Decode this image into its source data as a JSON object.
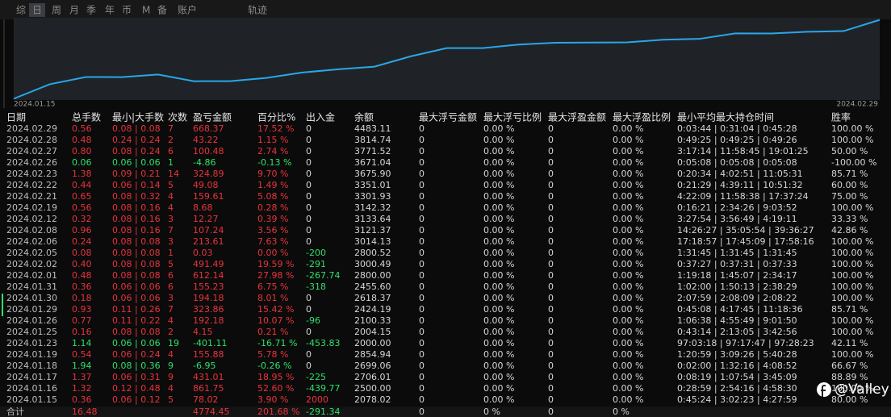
{
  "tabs": [
    "综",
    "日",
    "周",
    "月",
    "季",
    "年",
    "币",
    "M",
    "备",
    "账户",
    "轨迹"
  ],
  "active_tab": 1,
  "chart_data": {
    "type": "line",
    "categories": [
      "2024.01.15",
      null,
      null,
      null,
      null,
      null,
      null,
      null,
      null,
      null,
      null,
      null,
      null,
      null,
      null,
      null,
      null,
      null,
      null,
      null,
      null,
      null,
      null,
      null,
      "2024.02.29"
    ],
    "values": [
      78,
      940,
      1371,
      1364,
      1520,
      1119,
      1123,
      1315,
      1639,
      1833,
      1988,
      2600,
      3092,
      3092,
      3305,
      3413,
      3425,
      3434,
      3593,
      3642,
      3967,
      3962,
      4063,
      4106,
      4774
    ],
    "color": "#2aa6e8",
    "ylim": [
      0,
      4900
    ]
  },
  "table": {
    "header": [
      "日期",
      "总手数",
      "最小|大手数",
      "次数",
      "盈亏金额",
      "百分比%",
      "出入金",
      "余额",
      "最大浮亏金额",
      "最大浮亏比例",
      "最大浮盈金额",
      "最大浮盈比例",
      "最小平均最大持仓时间",
      "胜率"
    ],
    "rows": [
      [
        "2024.02.29",
        "0.56",
        "0.08 | 0.08",
        "7",
        "668.37",
        "17.52 %",
        "0",
        "4483.11",
        "0",
        "0.00 %",
        "0",
        "0.00 %",
        "0:03:44 | 0:31:04 | 0:45:28",
        "100.00 %"
      ],
      [
        "2024.02.28",
        "0.48",
        "0.24 | 0.24",
        "2",
        "43.22",
        "1.15 %",
        "0",
        "3814.74",
        "0",
        "0.00 %",
        "0",
        "0.00 %",
        "0:49:25 | 0:49:25 | 0:49:26",
        "100.00 %"
      ],
      [
        "2024.02.27",
        "0.80",
        "0.08 | 0.24",
        "6",
        "100.48",
        "2.74 %",
        "0",
        "3771.52",
        "0",
        "0.00 %",
        "0",
        "0.00 %",
        "3:17:14 | 11:58:45 | 19:01:25",
        "50.00 %"
      ],
      [
        "2024.02.26",
        "0.06",
        "0.06 | 0.06",
        "1",
        "-4.86",
        "-0.13 %",
        "0",
        "3671.04",
        "0",
        "0.00 %",
        "0",
        "0.00 %",
        "0:05:08 | 0:05:08 | 0:05:08",
        "-100.00 %"
      ],
      [
        "2024.02.23",
        "1.38",
        "0.09 | 0.21",
        "14",
        "324.89",
        "9.70 %",
        "0",
        "3675.90",
        "0",
        "0.00 %",
        "0",
        "0.00 %",
        "0:20:34 | 4:02:51 | 11:05:31",
        "85.71 %"
      ],
      [
        "2024.02.22",
        "0.44",
        "0.06 | 0.14",
        "5",
        "49.08",
        "1.49 %",
        "0",
        "3351.01",
        "0",
        "0.00 %",
        "0",
        "0.00 %",
        "0:21:29 | 4:39:11 | 10:51:32",
        "60.00 %"
      ],
      [
        "2024.02.21",
        "0.65",
        "0.08 | 0.32",
        "4",
        "159.61",
        "5.08 %",
        "0",
        "3301.93",
        "0",
        "0.00 %",
        "0",
        "0.00 %",
        "4:22:09 | 11:58:38 | 17:37:24",
        "75.00 %"
      ],
      [
        "2024.02.19",
        "0.56",
        "0.08 | 0.16",
        "4",
        "8.68",
        "0.28 %",
        "0",
        "3142.32",
        "0",
        "0.00 %",
        "0",
        "0.00 %",
        "0:16:21 | 2:34:26 | 9:03:52",
        "100.00 %"
      ],
      [
        "2024.02.12",
        "0.32",
        "0.08 | 0.16",
        "3",
        "12.27",
        "0.39 %",
        "0",
        "3133.64",
        "0",
        "0.00 %",
        "0",
        "0.00 %",
        "3:27:54 | 3:56:49 | 4:19:11",
        "33.33 %"
      ],
      [
        "2024.02.08",
        "0.96",
        "0.08 | 0.16",
        "7",
        "107.24",
        "3.56 %",
        "0",
        "3121.37",
        "0",
        "0.00 %",
        "0",
        "0.00 %",
        "14:26:27 | 35:05:54 | 39:36:27",
        "42.86 %"
      ],
      [
        "2024.02.06",
        "0.24",
        "0.08 | 0.08",
        "3",
        "213.61",
        "7.63 %",
        "0",
        "3014.13",
        "0",
        "0.00 %",
        "0",
        "0.00 %",
        "17:18:57 | 17:45:09 | 17:58:16",
        "100.00 %"
      ],
      [
        "2024.02.05",
        "0.08",
        "0.08 | 0.08",
        "1",
        "0.03",
        "0.00 %",
        "-200",
        "2800.52",
        "0",
        "0.00 %",
        "0",
        "0.00 %",
        "1:31:45 | 1:31:45 | 1:31:45",
        "100.00 %"
      ],
      [
        "2024.02.02",
        "0.40",
        "0.08 | 0.08",
        "5",
        "491.49",
        "19.59 %",
        "-291",
        "3000.49",
        "0",
        "0.00 %",
        "0",
        "0.00 %",
        "0:37:27 | 0:37:31 | 0:37:33",
        "100.00 %"
      ],
      [
        "2024.02.01",
        "0.48",
        "0.08 | 0.08",
        "6",
        "612.14",
        "27.98 %",
        "-267.74",
        "2800.00",
        "0",
        "0.00 %",
        "0",
        "0.00 %",
        "1:19:18 | 1:45:07 | 2:34:17",
        "100.00 %"
      ],
      [
        "2024.01.31",
        "0.36",
        "0.06 | 0.06",
        "6",
        "155.23",
        "6.75 %",
        "-318",
        "2455.60",
        "0",
        "0.00 %",
        "0",
        "0.00 %",
        "1:02:00 | 1:50:13 | 2:38:29",
        "100.00 %"
      ],
      [
        "2024.01.30",
        "0.18",
        "0.06 | 0.06",
        "3",
        "194.18",
        "8.01 %",
        "0",
        "2618.37",
        "0",
        "0.00 %",
        "0",
        "0.00 %",
        "2:07:59 | 2:08:09 | 2:08:22",
        "100.00 %"
      ],
      [
        "2024.01.29",
        "0.93",
        "0.11 | 0.26",
        "7",
        "323.86",
        "15.42 %",
        "0",
        "2424.19",
        "0",
        "0.00 %",
        "0",
        "0.00 %",
        "0:45:08 | 4:17:45 | 11:18:36",
        "85.71 %"
      ],
      [
        "2024.01.26",
        "0.77",
        "0.11 | 0.22",
        "4",
        "192.18",
        "10.07 %",
        "-96",
        "2100.33",
        "0",
        "0.00 %",
        "0",
        "0.00 %",
        "1:06:38 | 4:55:49 | 9:01:50",
        "100.00 %"
      ],
      [
        "2024.01.25",
        "0.16",
        "0.08 | 0.08",
        "2",
        "4.15",
        "0.21 %",
        "0",
        "2004.15",
        "0",
        "0.00 %",
        "0",
        "0.00 %",
        "0:43:14 | 2:13:05 | 3:42:56",
        "100.00 %"
      ],
      [
        "2024.01.23",
        "1.14",
        "0.06 | 0.06",
        "19",
        "-401.11",
        "-16.71 %",
        "-453.83",
        "2000.00",
        "0",
        "0.00 %",
        "0",
        "0.00 %",
        "97:03:18 | 97:17:47 | 97:28:23",
        "42.11 %"
      ],
      [
        "2024.01.19",
        "0.54",
        "0.06 | 0.24",
        "4",
        "155.88",
        "5.78 %",
        "0",
        "2854.94",
        "0",
        "0.00 %",
        "0",
        "0.00 %",
        "1:20:59 | 3:09:26 | 5:40:28",
        "100.00 %"
      ],
      [
        "2024.01.18",
        "1.94",
        "0.08 | 0.36",
        "9",
        "-6.95",
        "-0.26 %",
        "0",
        "2699.06",
        "0",
        "0.00 %",
        "0",
        "0.00 %",
        "0:02:00 | 1:32:16 | 4:08:52",
        "66.67 %"
      ],
      [
        "2024.01.17",
        "1.37",
        "0.06 | 0.31",
        "9",
        "431.01",
        "18.95 %",
        "-225",
        "2706.01",
        "0",
        "0.00 %",
        "0",
        "0.00 %",
        "0:08:19 | 1:07:54 | 3:45:09",
        "88.89 %"
      ],
      [
        "2024.01.16",
        "1.32",
        "0.12 | 0.48",
        "4",
        "861.75",
        "52.60 %",
        "-439.77",
        "2500.00",
        "0",
        "0.00 %",
        "0",
        "0.00 %",
        "0:28:59 | 2:54:16 | 4:58:30",
        "100.00 %"
      ],
      [
        "2024.01.15",
        "0.36",
        "0.06 | 0.12",
        "5",
        "78.02",
        "3.90 %",
        "2000",
        "2078.02",
        "0",
        "0.00 %",
        "0",
        "0.00 %",
        "0:45:24 | 3:02:23 | 4:27:59",
        "80.00 %"
      ]
    ],
    "total": [
      "合计",
      "16.48",
      null,
      null,
      "4774.45",
      "201.68 %",
      "-291.34",
      null,
      "0",
      "0 %",
      "0",
      "0 %",
      null,
      null
    ]
  },
  "watermark": "@Valley of Death"
}
